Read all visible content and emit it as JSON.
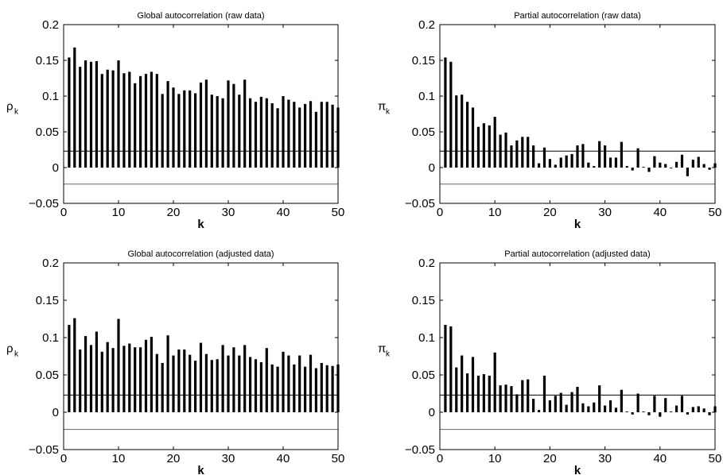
{
  "chart_data": [
    {
      "type": "bar",
      "title": "Global autocorrelation (raw data)",
      "xlabel": "k",
      "ylabel_symbol": "ρ",
      "ylabel_sub": "k",
      "xlim": [
        0,
        50
      ],
      "ylim": [
        -0.05,
        0.2
      ],
      "xticks": [
        0,
        10,
        20,
        30,
        40,
        50
      ],
      "yticks": [
        -0.05,
        0,
        0.05,
        0.1,
        0.15,
        0.2
      ],
      "ytick_labels": [
        "−0.05",
        "0",
        "0.05",
        "0.1",
        "0.15",
        "0.2"
      ],
      "confidence_band": [
        0.023,
        -0.023
      ],
      "x": [
        1,
        2,
        3,
        4,
        5,
        6,
        7,
        8,
        9,
        10,
        11,
        12,
        13,
        14,
        15,
        16,
        17,
        18,
        19,
        20,
        21,
        22,
        23,
        24,
        25,
        26,
        27,
        28,
        29,
        30,
        31,
        32,
        33,
        34,
        35,
        36,
        37,
        38,
        39,
        40,
        41,
        42,
        43,
        44,
        45,
        46,
        47,
        48,
        49,
        50
      ],
      "values": [
        0.154,
        0.168,
        0.141,
        0.15,
        0.148,
        0.149,
        0.131,
        0.137,
        0.136,
        0.15,
        0.132,
        0.134,
        0.118,
        0.128,
        0.131,
        0.134,
        0.131,
        0.103,
        0.121,
        0.112,
        0.103,
        0.108,
        0.108,
        0.104,
        0.119,
        0.123,
        0.102,
        0.1,
        0.097,
        0.122,
        0.117,
        0.102,
        0.123,
        0.097,
        0.092,
        0.099,
        0.097,
        0.09,
        0.083,
        0.1,
        0.095,
        0.092,
        0.084,
        0.089,
        0.093,
        0.078,
        0.092,
        0.092,
        0.088,
        0.084
      ]
    },
    {
      "type": "bar",
      "title": "Partial autocorrelation (raw data)",
      "xlabel": "k",
      "ylabel_symbol": "π",
      "ylabel_sub": "k",
      "xlim": [
        0,
        50
      ],
      "ylim": [
        -0.05,
        0.2
      ],
      "xticks": [
        0,
        10,
        20,
        30,
        40,
        50
      ],
      "yticks": [
        -0.05,
        0,
        0.05,
        0.1,
        0.15,
        0.2
      ],
      "ytick_labels": [
        "−0.05",
        "0",
        "0.05",
        "0.1",
        "0.15",
        "0.2"
      ],
      "confidence_band": [
        0.023,
        -0.023
      ],
      "x": [
        1,
        2,
        3,
        4,
        5,
        6,
        7,
        8,
        9,
        10,
        11,
        12,
        13,
        14,
        15,
        16,
        17,
        18,
        19,
        20,
        21,
        22,
        23,
        24,
        25,
        26,
        27,
        28,
        29,
        30,
        31,
        32,
        33,
        34,
        35,
        36,
        37,
        38,
        39,
        40,
        41,
        42,
        43,
        44,
        45,
        46,
        47,
        48,
        49,
        50
      ],
      "values": [
        0.154,
        0.148,
        0.101,
        0.102,
        0.092,
        0.084,
        0.057,
        0.062,
        0.059,
        0.071,
        0.046,
        0.049,
        0.031,
        0.038,
        0.043,
        0.043,
        0.031,
        0.006,
        0.028,
        0.012,
        0.004,
        0.014,
        0.017,
        0.019,
        0.031,
        0.033,
        0.007,
        0.002,
        0.037,
        0.031,
        0.014,
        0.014,
        0.036,
        0.002,
        -0.004,
        0.027,
        0.001,
        -0.006,
        0.016,
        0.007,
        0.005,
        -0.001,
        0.008,
        0.018,
        -0.012,
        0.011,
        0.015,
        0.005,
        -0.003,
        0.006
      ]
    },
    {
      "type": "bar",
      "title": "Global autocorrelation (adjusted data)",
      "xlabel": "k",
      "ylabel_symbol": "ρ",
      "ylabel_sub": "k",
      "xlim": [
        0,
        50
      ],
      "ylim": [
        -0.05,
        0.2
      ],
      "xticks": [
        0,
        10,
        20,
        30,
        40,
        50
      ],
      "yticks": [
        -0.05,
        0,
        0.05,
        0.1,
        0.15,
        0.2
      ],
      "ytick_labels": [
        "−0.05",
        "0",
        "0.05",
        "0.1",
        "0.15",
        "0.2"
      ],
      "confidence_band": [
        0.023,
        -0.023
      ],
      "x": [
        1,
        2,
        3,
        4,
        5,
        6,
        7,
        8,
        9,
        10,
        11,
        12,
        13,
        14,
        15,
        16,
        17,
        18,
        19,
        20,
        21,
        22,
        23,
        24,
        25,
        26,
        27,
        28,
        29,
        30,
        31,
        32,
        33,
        34,
        35,
        36,
        37,
        38,
        39,
        40,
        41,
        42,
        43,
        44,
        45,
        46,
        47,
        48,
        49,
        50
      ],
      "values": [
        0.117,
        0.126,
        0.084,
        0.102,
        0.09,
        0.108,
        0.081,
        0.094,
        0.086,
        0.125,
        0.089,
        0.092,
        0.087,
        0.087,
        0.097,
        0.101,
        0.078,
        0.066,
        0.103,
        0.076,
        0.084,
        0.084,
        0.077,
        0.069,
        0.093,
        0.078,
        0.07,
        0.071,
        0.09,
        0.076,
        0.087,
        0.076,
        0.09,
        0.074,
        0.071,
        0.067,
        0.086,
        0.064,
        0.061,
        0.081,
        0.076,
        0.064,
        0.076,
        0.061,
        0.077,
        0.059,
        0.066,
        0.063,
        0.062,
        0.064
      ]
    },
    {
      "type": "bar",
      "title": "Partial autocorrelation (adjusted data)",
      "xlabel": "k",
      "ylabel_symbol": "π",
      "ylabel_sub": "k",
      "xlim": [
        0,
        50
      ],
      "ylim": [
        -0.05,
        0.2
      ],
      "xticks": [
        0,
        10,
        20,
        30,
        40,
        50
      ],
      "yticks": [
        -0.05,
        0,
        0.05,
        0.1,
        0.15,
        0.2
      ],
      "ytick_labels": [
        "−0.05",
        "0",
        "0.05",
        "0.1",
        "0.15",
        "0.2"
      ],
      "confidence_band": [
        0.023,
        -0.023
      ],
      "x": [
        1,
        2,
        3,
        4,
        5,
        6,
        7,
        8,
        9,
        10,
        11,
        12,
        13,
        14,
        15,
        16,
        17,
        18,
        19,
        20,
        21,
        22,
        23,
        24,
        25,
        26,
        27,
        28,
        29,
        30,
        31,
        32,
        33,
        34,
        35,
        36,
        37,
        38,
        39,
        40,
        41,
        42,
        43,
        44,
        45,
        46,
        47,
        48,
        49,
        50
      ],
      "values": [
        0.117,
        0.115,
        0.06,
        0.076,
        0.052,
        0.074,
        0.049,
        0.051,
        0.049,
        0.08,
        0.036,
        0.037,
        0.035,
        0.024,
        0.043,
        0.044,
        0.018,
        0.003,
        0.049,
        0.016,
        0.022,
        0.026,
        0.01,
        0.027,
        0.034,
        0.012,
        0.008,
        0.013,
        0.036,
        0.009,
        0.016,
        0.006,
        0.03,
        0.001,
        -0.003,
        0.025,
        0.001,
        -0.004,
        0.022,
        -0.006,
        0.019,
        0.001,
        0.009,
        0.022,
        -0.003,
        0.007,
        0.008,
        0.005,
        -0.004,
        0.008
      ]
    }
  ]
}
